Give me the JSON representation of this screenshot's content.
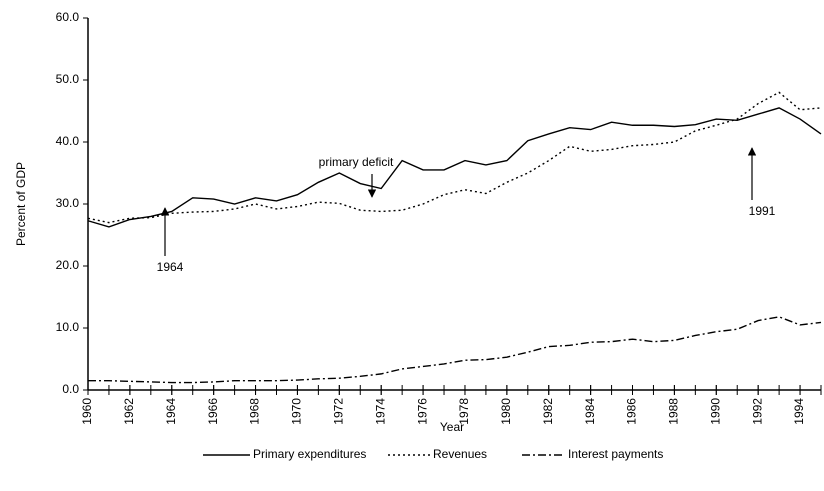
{
  "chart_data": {
    "type": "line",
    "xlabel": "Year",
    "ylabel": "Percent of GDP",
    "x": [
      1960,
      1961,
      1962,
      1963,
      1964,
      1965,
      1966,
      1967,
      1968,
      1969,
      1970,
      1971,
      1972,
      1973,
      1974,
      1975,
      1976,
      1977,
      1978,
      1979,
      1980,
      1981,
      1982,
      1983,
      1984,
      1985,
      1986,
      1987,
      1988,
      1989,
      1990,
      1991,
      1992,
      1993,
      1994,
      1995
    ],
    "series": [
      {
        "name": "Primary expenditures",
        "color": "#000000",
        "style": "solid",
        "values": [
          27.3,
          26.3,
          27.5,
          28,
          28.8,
          31,
          30.8,
          30,
          31,
          30.5,
          31.5,
          33.5,
          35,
          33.3,
          32.5,
          37,
          35.5,
          35.5,
          37,
          36.3,
          37,
          40.2,
          41.3,
          42.3,
          42,
          43.2,
          42.7,
          42.7,
          42.5,
          42.8,
          43.7,
          43.5,
          44.5,
          45.5,
          43.7,
          41.3
        ]
      },
      {
        "name": "Revenues",
        "color": "#000000",
        "style": "dotted",
        "values": [
          27.7,
          27,
          27.7,
          27.8,
          28.5,
          28.7,
          28.8,
          29.2,
          30,
          29.2,
          29.6,
          30.3,
          30.1,
          29,
          28.8,
          29,
          30,
          31.5,
          32.3,
          31.7,
          33.5,
          35,
          37,
          39.3,
          38.5,
          38.8,
          39.4,
          39.6,
          40,
          41.8,
          42.7,
          43.7,
          46.2,
          48,
          45.2,
          45.5
        ]
      },
      {
        "name": "Interest payments",
        "color": "#000000",
        "style": "dashdot",
        "values": [
          1.5,
          1.5,
          1.4,
          1.3,
          1.2,
          1.2,
          1.3,
          1.5,
          1.5,
          1.5,
          1.6,
          1.8,
          1.9,
          2.2,
          2.6,
          3.4,
          3.8,
          4.2,
          4.8,
          4.9,
          5.3,
          6.1,
          7,
          7.2,
          7.7,
          7.8,
          8.2,
          7.8,
          8,
          8.8,
          9.4,
          9.8,
          11.2,
          11.8,
          10.5,
          10.9
        ]
      }
    ],
    "xlim": [
      1960,
      1995
    ],
    "xticks": [
      1960,
      1962,
      1964,
      1966,
      1968,
      1970,
      1972,
      1974,
      1976,
      1978,
      1980,
      1982,
      1984,
      1986,
      1988,
      1990,
      1992,
      1994
    ],
    "ylim": [
      0,
      60
    ],
    "yticks": [
      {
        "value": 0,
        "label": "0.0"
      },
      {
        "value": 10,
        "label": "10.0"
      },
      {
        "value": 20,
        "label": "20.0"
      },
      {
        "value": 30,
        "label": "30.0"
      },
      {
        "value": 40,
        "label": "40.0"
      },
      {
        "value": 50,
        "label": "50.0"
      },
      {
        "value": 60,
        "label": "60.0"
      }
    ],
    "annotations": [
      "primary deficit",
      "1964",
      "1991"
    ],
    "legend": "bottom"
  }
}
